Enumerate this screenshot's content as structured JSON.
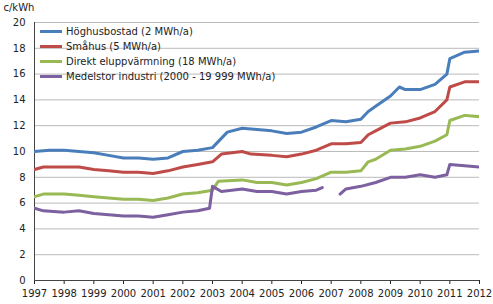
{
  "chart_data": {
    "type": "line",
    "y_label": "c/kWh",
    "xlim": [
      1997,
      2012
    ],
    "xticks": [
      1997,
      1998,
      1999,
      2000,
      2001,
      2002,
      2003,
      2004,
      2005,
      2006,
      2007,
      2008,
      2009,
      2010,
      2011,
      2012
    ],
    "ylim": [
      0,
      20
    ],
    "yticks": [
      0,
      2,
      4,
      6,
      8,
      10,
      12,
      14,
      16,
      18,
      20
    ],
    "grid": true,
    "legend": "top-left",
    "series": [
      {
        "name": "Höghusbostad (2 MWh/a)",
        "color": "#4a7ebb",
        "x": [
          1997,
          1997.5,
          1998,
          1998.5,
          1999,
          1999.5,
          2000,
          2000.5,
          2001,
          2001.5,
          2002,
          2002.5,
          2003,
          2003.5,
          2004,
          2004.5,
          2005,
          2005.5,
          2006,
          2006.5,
          2007,
          2007.5,
          2008,
          2008.25,
          2008.5,
          2009,
          2009.3,
          2009.5,
          2010,
          2010.5,
          2010.9,
          2011,
          2011.5,
          2012
        ],
        "values": [
          10.0,
          10.1,
          10.1,
          10.0,
          9.9,
          9.7,
          9.5,
          9.5,
          9.4,
          9.5,
          10.0,
          10.1,
          10.3,
          11.5,
          11.8,
          11.7,
          11.6,
          11.4,
          11.5,
          11.9,
          12.4,
          12.3,
          12.5,
          13.1,
          13.5,
          14.3,
          15.0,
          14.8,
          14.8,
          15.2,
          16.0,
          17.2,
          17.7,
          17.8
        ]
      },
      {
        "name": "Småhus (5 MWh/a)",
        "color": "#be4b48",
        "x": [
          1997,
          1997.3,
          1998,
          1998.5,
          1999,
          1999.5,
          2000,
          2000.5,
          2001,
          2001.5,
          2002,
          2002.5,
          2003,
          2003.3,
          2004,
          2004.3,
          2005,
          2005.5,
          2006,
          2006.5,
          2007,
          2007.5,
          2008,
          2008.25,
          2008.5,
          2009,
          2009.5,
          2010,
          2010.5,
          2010.9,
          2011,
          2011.5,
          2012
        ],
        "values": [
          8.6,
          8.8,
          8.8,
          8.8,
          8.6,
          8.5,
          8.4,
          8.4,
          8.3,
          8.5,
          8.8,
          9.0,
          9.2,
          9.8,
          10.0,
          9.8,
          9.7,
          9.6,
          9.8,
          10.1,
          10.6,
          10.6,
          10.7,
          11.3,
          11.6,
          12.2,
          12.3,
          12.6,
          13.1,
          14.0,
          15.0,
          15.4,
          15.4
        ]
      },
      {
        "name": "Direkt eluppvärmning (18 MWh/a)",
        "color": "#98b954",
        "x": [
          1997,
          1997.3,
          1998,
          1998.5,
          1999,
          1999.5,
          2000,
          2000.5,
          2001,
          2001.5,
          2002,
          2002.5,
          2003,
          2003.2,
          2004,
          2004.5,
          2005,
          2005.5,
          2006,
          2006.5,
          2007,
          2007.5,
          2008,
          2008.25,
          2008.5,
          2009,
          2009.5,
          2010,
          2010.5,
          2010.9,
          2011,
          2011.5,
          2012
        ],
        "values": [
          6.5,
          6.7,
          6.7,
          6.6,
          6.5,
          6.4,
          6.3,
          6.3,
          6.2,
          6.4,
          6.7,
          6.8,
          7.0,
          7.7,
          7.8,
          7.6,
          7.6,
          7.4,
          7.6,
          7.9,
          8.4,
          8.4,
          8.5,
          9.2,
          9.4,
          10.1,
          10.2,
          10.4,
          10.8,
          11.3,
          12.4,
          12.8,
          12.7
        ]
      },
      {
        "name": "Medelstor industri (2000 - 19 999 MWh/a)",
        "color": "#7d60a0",
        "x": [
          1997,
          1997.3,
          1998,
          1998.5,
          1999,
          1999.5,
          2000,
          2000.5,
          2001,
          2001.5,
          2002,
          2002.5,
          2002.9,
          2003,
          2003.3,
          2004,
          2004.5,
          2005,
          2005.5,
          2006,
          2006.5,
          2006.7,
          2006.8,
          2007.3,
          2007.5,
          2008,
          2008.5,
          2009,
          2009.5,
          2010,
          2010.5,
          2010.9,
          2011,
          2011.5,
          2012
        ],
        "values": [
          5.6,
          5.4,
          5.3,
          5.4,
          5.2,
          5.1,
          5.0,
          5.0,
          4.9,
          5.1,
          5.3,
          5.4,
          5.6,
          7.3,
          6.9,
          7.1,
          6.9,
          6.9,
          6.7,
          6.9,
          7.0,
          7.2,
          null,
          6.7,
          7.1,
          7.3,
          7.6,
          8.0,
          8.0,
          8.2,
          8.0,
          8.2,
          9.0,
          8.9,
          8.8
        ]
      }
    ]
  }
}
